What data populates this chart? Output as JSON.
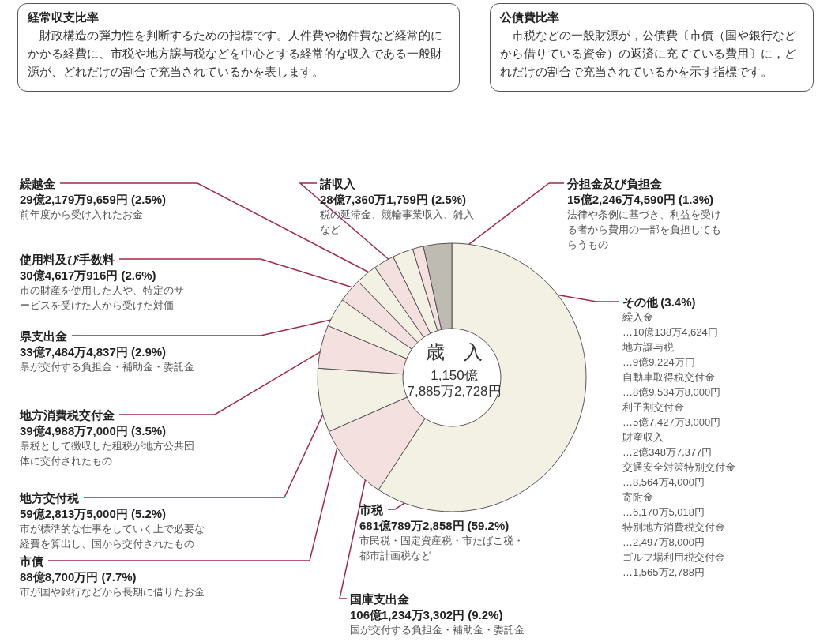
{
  "chart_data": {
    "type": "donut",
    "title": "歳　入",
    "subtitle": "1,150億\n7,885万2,728円",
    "categories": [
      "市税",
      "国庫支出金",
      "市債",
      "地方交付税",
      "地方消費税交付金",
      "県支出金",
      "使用料及び手数料",
      "繰越金",
      "諸収入",
      "分担金及び負担金",
      "その他"
    ],
    "values": [
      59.2,
      9.2,
      7.7,
      5.2,
      3.5,
      2.9,
      2.6,
      2.5,
      2.5,
      1.3,
      3.4
    ],
    "colors": [
      "#f3f1e4",
      "#f5e0e0",
      "#f3f1e4",
      "#f5e0e0",
      "#f3f1e4",
      "#f5e0e0",
      "#f3f1e4",
      "#f5e0e0",
      "#f3f1e4",
      "#f5e0e0",
      "#bdbbb2"
    ],
    "value_labels": [
      "681億789万2,858円 (59.2%)",
      "106億1,234万3,302円 (9.2%)",
      "88億8,700万円 (7.7%)",
      "59億2,813万5,000円 (5.2%)",
      "39億4,988万7,000円 (3.5%)",
      "33億7,484万4,837円 (2.9%)",
      "30億4,617万916円 (2.6%)",
      "29億2,179万9,659円 (2.5%)",
      "28億7,360万1,759円 (2.5%)",
      "15億2,246万4,590円 (1.3%)",
      "(3.4%)"
    ],
    "annotations": [
      "経常収支比率",
      "　財政構造の弾力性を判断するための指標です。人件費や物件費など経常的にかかる経費に、市税や地方譲与税などを中心とする経常的な収入である一般財源が、どれだけの割合で充当されているかを表します。",
      "公債費比率",
      "　市税などの一般財源が，公債費〔市債（国や銀行などから借りている資金）の返済に充てている費用〕に，どれだけの割合で充当されているかを示す指標です。",
      "市民税・固定資産税・市たばこ税・都市計画税など",
      "国が交付する負担金・補助金・委託金",
      "市が国や銀行などから長期に借りたお金",
      "市が標準的な仕事をしていく上で必要な経費を算出し、国から交付されたもの",
      "県税として徴収した租税が地方公共団体に交付されたもの",
      "県が交付する負担金・補助金・委託金",
      "市の財産を使用した人や、特定のサービスを受けた人から受けた対価",
      "前年度から受け入れたお金",
      "税の延滞金、競輪事業収入、雑入など",
      "法律や条例に基づき、利益を受ける者から費用の一部を負担してもらうもの",
      "繰入金",
      "…10億138万4,624円",
      "地方譲与税",
      "…9億9,224万円",
      "自動車取得税交付金",
      "…8億9,534万8,000円",
      "利子割交付金",
      "…5億7,427万3,000円",
      "財産収入",
      "…2億348万7,377円",
      "交通安全対策特別交付金",
      "…8,564万4,000円",
      "寄附金",
      "…6,170万5,018円",
      "特別地方消費税交付金",
      "…2,497万8,000円",
      "ゴルフ場利用税交付金",
      "…1,565万2,788円"
    ]
  }
}
